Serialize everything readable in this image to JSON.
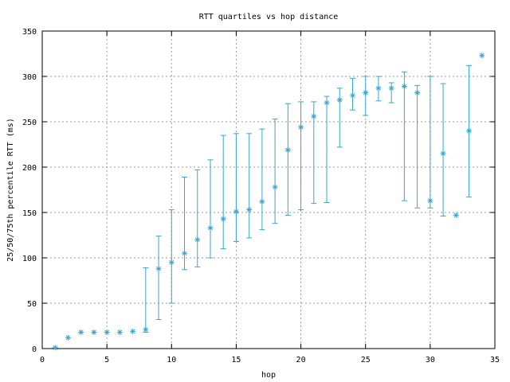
{
  "chart_data": {
    "type": "scatter",
    "title": "RTT quartiles vs hop distance",
    "xlabel": "hop",
    "ylabel": "25/50/75th percentile RTT (ms)",
    "xlim": [
      0,
      35
    ],
    "ylim": [
      0,
      350
    ],
    "xticks": [
      0,
      5,
      10,
      15,
      20,
      25,
      30,
      35
    ],
    "yticks": [
      0,
      50,
      100,
      150,
      200,
      250,
      300,
      350
    ],
    "grid": true,
    "legend": "none",
    "marker": "asterisk",
    "color": "#3aa5cf",
    "series": [
      {
        "points": [
          {
            "x": 1,
            "y": 1,
            "low": 1,
            "high": 1
          },
          {
            "x": 2,
            "y": 12,
            "low": 12,
            "high": 12
          },
          {
            "x": 3,
            "y": 18,
            "low": 18,
            "high": 18
          },
          {
            "x": 4,
            "y": 18,
            "low": 18,
            "high": 18
          },
          {
            "x": 5,
            "y": 18,
            "low": 18,
            "high": 18
          },
          {
            "x": 6,
            "y": 18,
            "low": 18,
            "high": 18
          },
          {
            "x": 7,
            "y": 19,
            "low": 19,
            "high": 19
          },
          {
            "x": 8,
            "y": 21,
            "low": 18,
            "high": 89
          },
          {
            "x": 9,
            "y": 88,
            "low": 32,
            "high": 124
          },
          {
            "x": 10,
            "y": 95,
            "low": 50,
            "high": 153
          },
          {
            "x": 11,
            "y": 105,
            "low": 87,
            "high": 189
          },
          {
            "x": 12,
            "y": 120,
            "low": 90,
            "high": 197
          },
          {
            "x": 13,
            "y": 133,
            "low": 100,
            "high": 208
          },
          {
            "x": 14,
            "y": 143,
            "low": 110,
            "high": 235
          },
          {
            "x": 15,
            "y": 151,
            "low": 118,
            "high": 237
          },
          {
            "x": 16,
            "y": 153,
            "low": 122,
            "high": 237
          },
          {
            "x": 17,
            "y": 162,
            "low": 131,
            "high": 242
          },
          {
            "x": 18,
            "y": 178,
            "low": 138,
            "high": 253
          },
          {
            "x": 19,
            "y": 219,
            "low": 147,
            "high": 270
          },
          {
            "x": 20,
            "y": 244,
            "low": 153,
            "high": 272
          },
          {
            "x": 21,
            "y": 256,
            "low": 160,
            "high": 272
          },
          {
            "x": 22,
            "y": 271,
            "low": 161,
            "high": 278
          },
          {
            "x": 23,
            "y": 274,
            "low": 222,
            "high": 287
          },
          {
            "x": 24,
            "y": 279,
            "low": 263,
            "high": 298
          },
          {
            "x": 25,
            "y": 282,
            "low": 257,
            "high": 300
          },
          {
            "x": 26,
            "y": 287,
            "low": 273,
            "high": 300
          },
          {
            "x": 27,
            "y": 287,
            "low": 271,
            "high": 293
          },
          {
            "x": 28,
            "y": 289,
            "low": 163,
            "high": 305
          },
          {
            "x": 29,
            "y": 282,
            "low": 155,
            "high": 290
          },
          {
            "x": 30,
            "y": 163,
            "low": 155,
            "high": 300
          },
          {
            "x": 31,
            "y": 215,
            "low": 146,
            "high": 292
          },
          {
            "x": 32,
            "y": 147,
            "low": 147,
            "high": 147
          },
          {
            "x": 33,
            "y": 240,
            "low": 167,
            "high": 312
          },
          {
            "x": 34,
            "y": 323,
            "low": 323,
            "high": 323
          }
        ]
      }
    ]
  }
}
